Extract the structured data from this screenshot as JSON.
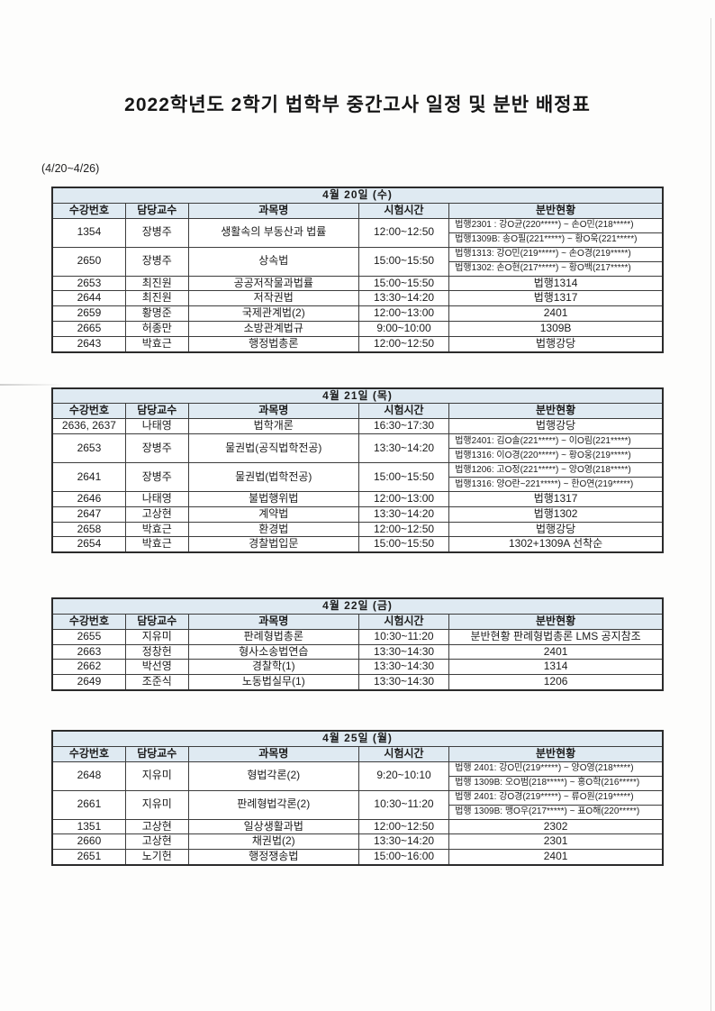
{
  "page": {
    "title": "2022학년도 2학기 법학부 중간고사 일정 및 분반 배정표",
    "range_label": "(4/20~4/26)"
  },
  "colors": {
    "header_bg": "#dfeaf2",
    "border": "#3d3d3d",
    "outer_border": "#2b2b2b"
  },
  "columns": [
    "수강번호",
    "담당교수",
    "과목명",
    "시험시간",
    "분반현황"
  ],
  "tables": [
    {
      "date_header": "4월 20일 (수)",
      "rows": [
        {
          "course_no": "1354",
          "professor": "장병주",
          "subject": "생활속의 부동산과 법률",
          "time": "12:00~12:50",
          "sections": [
            "법행2301 : 강O균(220*****) ~ 손O민(218*****)",
            "법행1309B: 송O필(221*****) ~ 황O욱(221*****)"
          ]
        },
        {
          "course_no": "2650",
          "professor": "장병주",
          "subject": "상속법",
          "time": "15:00~15:50",
          "sections": [
            "법행1313:  강O민(219*****) ~ 손O경(219*****)",
            "법행1302:  손O현(217*****) ~ 황O백(217*****)"
          ]
        },
        {
          "course_no": "2653",
          "professor": "최진원",
          "subject": "공공저작물과법률",
          "time": "15:00~15:50",
          "sections": [
            "법행1314"
          ]
        },
        {
          "course_no": "2644",
          "professor": "최진원",
          "subject": "저작권법",
          "time": "13:30~14:20",
          "sections": [
            "법행1317"
          ]
        },
        {
          "course_no": "2659",
          "professor": "황명준",
          "subject": "국제관계법(2)",
          "time": "12:00~13:00",
          "sections": [
            "2401"
          ]
        },
        {
          "course_no": "2665",
          "professor": "허종만",
          "subject": "소방관계법규",
          "time": "9:00~10:00",
          "sections": [
            "1309B"
          ]
        },
        {
          "course_no": "2643",
          "professor": "박효근",
          "subject": "행정법총론",
          "time": "12:00~12:50",
          "sections": [
            "법행강당"
          ]
        }
      ]
    },
    {
      "date_header": "4월 21일 (목)",
      "rows": [
        {
          "course_no": "2636, 2637",
          "professor": "나태영",
          "subject": "법학개론",
          "time": "16:30~17:30",
          "sections": [
            "법행강당"
          ]
        },
        {
          "course_no": "2653",
          "professor": "장병주",
          "subject": "물권법(공직법학전공)",
          "time": "13:30~14:20",
          "sections": [
            "법행2401: 김O솔(221*****) ~ 이O림(221*****)",
            "법행1316: 이O경(220*****) ~ 황O웅(219*****)"
          ]
        },
        {
          "course_no": "2641",
          "professor": "장병주",
          "subject": "물권법(법학전공)",
          "time": "15:00~15:50",
          "sections": [
            "법행1206: 고O정(221*****) ~ 양O영(218*****)",
            "법행1316: 양O란~221*****) ~ 한O연(219*****)"
          ]
        },
        {
          "course_no": "2646",
          "professor": "나태영",
          "subject": "불법행위법",
          "time": "12:00~13:00",
          "sections": [
            "법행1317"
          ]
        },
        {
          "course_no": "2647",
          "professor": "고상현",
          "subject": "계약법",
          "time": "13:30~14:20",
          "sections": [
            "법행1302"
          ]
        },
        {
          "course_no": "2658",
          "professor": "박효근",
          "subject": "환경법",
          "time": "12:00~12:50",
          "sections": [
            "법행강당"
          ]
        },
        {
          "course_no": "2654",
          "professor": "박효근",
          "subject": "경찰법입문",
          "time": "15:00~15:50",
          "sections": [
            "1302+1309A 선착순"
          ]
        }
      ]
    },
    {
      "date_header": "4월 22일 (금)",
      "rows": [
        {
          "course_no": "2655",
          "professor": "지유미",
          "subject": "판례형법총론",
          "time": "10:30~11:20",
          "sections": [
            "분반현황 판례형법총론 LMS 공지참조"
          ]
        },
        {
          "course_no": "2663",
          "professor": "정창헌",
          "subject": "형사소송법연습",
          "time": "13:30~14:30",
          "sections": [
            "2401"
          ]
        },
        {
          "course_no": "2662",
          "professor": "박선영",
          "subject": "경찰학(1)",
          "time": "13:30~14:30",
          "sections": [
            "1314"
          ]
        },
        {
          "course_no": "2649",
          "professor": "조준식",
          "subject": "노동법실무(1)",
          "time": "13:30~14:30",
          "sections": [
            "1206"
          ]
        }
      ]
    },
    {
      "date_header": "4월 25일 (월)",
      "rows": [
        {
          "course_no": "2648",
          "professor": "지유미",
          "subject": "형법각론(2)",
          "time": "9:20~10:10",
          "sections": [
            "법행 2401: 강O민(219*****) ~ 양O영(218*****)",
            "법행 1309B: 오O범(218*****) ~ 홍O학(216*****)"
          ]
        },
        {
          "course_no": "2661",
          "professor": "지유미",
          "subject": "판례형법각론(2)",
          "time": "10:30~11:20",
          "sections": [
            "법행 2401: 강O경(219*****) ~ 류O원(219*****)",
            "법행 1309B: 맹O우(217*****) ~ 표O해(220*****)"
          ]
        },
        {
          "course_no": "1351",
          "professor": "고상현",
          "subject": "일상생활과법",
          "time": "12:00~12:50",
          "sections": [
            "2302"
          ]
        },
        {
          "course_no": "2660",
          "professor": "고상현",
          "subject": "채권법(2)",
          "time": "13:30~14:20",
          "sections": [
            "2301"
          ]
        },
        {
          "course_no": "2651",
          "professor": "노기헌",
          "subject": "행정쟁송법",
          "time": "15:00~16:00",
          "sections": [
            "2401"
          ]
        }
      ]
    }
  ]
}
